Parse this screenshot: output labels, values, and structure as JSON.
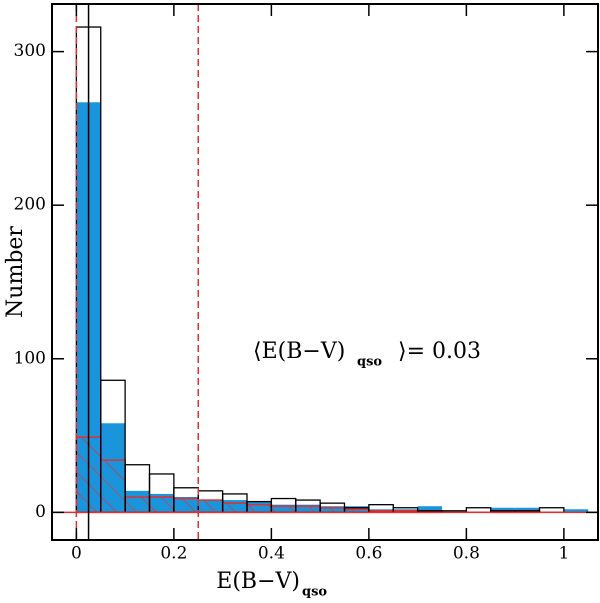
{
  "chart_data": {
    "type": "histogram",
    "bins": [
      0,
      0.05,
      0.1,
      0.15,
      0.2,
      0.25,
      0.3,
      0.35,
      0.4,
      0.45,
      0.5,
      0.55,
      0.6,
      0.65,
      0.7,
      0.75,
      0.8,
      0.85,
      0.9,
      0.95,
      1,
      1.05
    ],
    "series": [
      {
        "color": "#1a95dc",
        "style": "fill",
        "values": [
          267,
          58,
          14,
          12,
          10,
          8,
          8,
          7,
          5,
          5,
          4,
          4,
          2,
          2,
          4,
          0,
          0,
          3,
          3,
          0,
          2
        ]
      },
      {
        "color": "#e03030",
        "style": "hatch",
        "values": [
          49,
          34,
          10,
          10,
          9,
          8,
          6,
          5,
          4,
          4,
          3,
          2,
          1,
          1,
          1,
          0,
          0,
          1,
          1,
          0,
          0
        ]
      },
      {
        "color": "#000000",
        "style": "outline",
        "values": [
          316,
          86,
          31,
          25,
          16,
          14,
          12,
          7,
          9,
          8,
          6,
          3,
          5,
          3,
          1,
          1,
          3,
          1,
          1,
          3,
          0
        ]
      }
    ],
    "vlines": [
      {
        "x": 0,
        "color": "#e03030",
        "dash": true
      },
      {
        "x": 0.25,
        "color": "#e03030",
        "dash": true
      },
      {
        "x": 0.025,
        "color": "#000000",
        "dash": false
      }
    ],
    "x_label": "E(B−V)",
    "x_label_sub": "qso",
    "y_label": "Number",
    "annotation": {
      "pre": "⟨E(B−V)",
      "sub": "qso",
      "post": "⟩=  0.03"
    },
    "xlim": [
      -0.05,
      1.07
    ],
    "xticks": [
      0,
      0.2,
      0.4,
      0.6,
      0.8,
      1
    ],
    "ylim": [
      -18,
      331
    ],
    "yticks": [
      0,
      100,
      200,
      300
    ]
  }
}
